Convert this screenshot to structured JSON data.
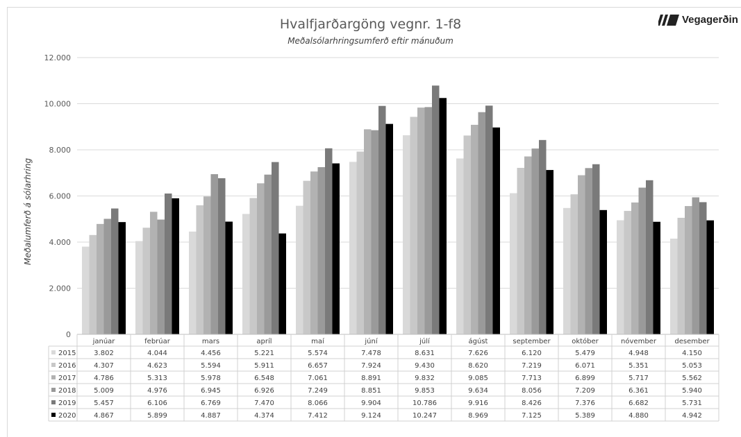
{
  "chart_data": {
    "type": "bar",
    "title": "Hvalfjarðargöng vegnr. 1-f8",
    "subtitle": "Meðalsólarhringsumferð eftir mánuðum",
    "ylabel": "Meðalumferð á sólarhring",
    "xlabel": "",
    "ylim": [
      0,
      12000
    ],
    "yticks": [
      "0",
      "2.000",
      "4.000",
      "6.000",
      "8.000",
      "10.000",
      "12.000"
    ],
    "grid": true,
    "legend": "data-table",
    "categories": [
      "janúar",
      "febrúar",
      "mars",
      "apríl",
      "maí",
      "júní",
      "júlí",
      "ágúst",
      "september",
      "október",
      "nóvember",
      "desember"
    ],
    "series": [
      {
        "name": "2015",
        "color": "#d9d9d9",
        "values": [
          3802,
          4044,
          4456,
          5221,
          5574,
          7478,
          8631,
          7626,
          6120,
          5479,
          4948,
          4150
        ],
        "labels": [
          "3.802",
          "4.044",
          "4.456",
          "5.221",
          "5.574",
          "7.478",
          "8.631",
          "7.626",
          "6.120",
          "5.479",
          "4.948",
          "4.150"
        ]
      },
      {
        "name": "2016",
        "color": "#c8c8c8",
        "values": [
          4307,
          4623,
          5594,
          5911,
          6657,
          7924,
          9430,
          8620,
          7219,
          6071,
          5351,
          5053
        ],
        "labels": [
          "4.307",
          "4.623",
          "5.594",
          "5.911",
          "6.657",
          "7.924",
          "9.430",
          "8.620",
          "7.219",
          "6.071",
          "5.351",
          "5.053"
        ]
      },
      {
        "name": "2017",
        "color": "#b2b2b2",
        "values": [
          4786,
          5313,
          5978,
          6548,
          7061,
          8891,
          9832,
          9085,
          7713,
          6899,
          5717,
          5562
        ],
        "labels": [
          "4.786",
          "5.313",
          "5.978",
          "6.548",
          "7.061",
          "8.891",
          "9.832",
          "9.085",
          "7.713",
          "6.899",
          "5.717",
          "5.562"
        ]
      },
      {
        "name": "2018",
        "color": "#9a9a9a",
        "values": [
          5009,
          4976,
          6945,
          6926,
          7249,
          8851,
          9853,
          9634,
          8056,
          7209,
          6361,
          5940
        ],
        "labels": [
          "5.009",
          "4.976",
          "6.945",
          "6.926",
          "7.249",
          "8.851",
          "9.853",
          "9.634",
          "8.056",
          "7.209",
          "6.361",
          "5.940"
        ]
      },
      {
        "name": "2019",
        "color": "#7a7a7a",
        "values": [
          5457,
          6106,
          6769,
          7470,
          8066,
          9904,
          10786,
          9916,
          8426,
          7376,
          6682,
          5731
        ],
        "labels": [
          "5.457",
          "6.106",
          "6.769",
          "7.470",
          "8.066",
          "9.904",
          "10.786",
          "9.916",
          "8.426",
          "7.376",
          "6.682",
          "5.731"
        ]
      },
      {
        "name": "2020",
        "color": "#000000",
        "values": [
          4867,
          5899,
          4887,
          4374,
          7412,
          9124,
          10247,
          8969,
          7125,
          5389,
          4880,
          4942
        ],
        "labels": [
          "4.867",
          "5.899",
          "4.887",
          "4.374",
          "7.412",
          "9.124",
          "10.247",
          "8.969",
          "7.125",
          "5.389",
          "4.880",
          "4.942"
        ]
      }
    ]
  },
  "logo": {
    "text": "Vegagerðin"
  }
}
